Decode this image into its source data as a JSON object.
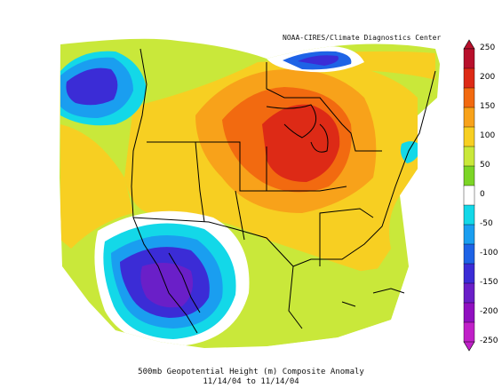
{
  "credit": "NOAA-CIRES/Climate Diagnostics Center",
  "title": "500mb Geopotential Height (m) Composite Anomaly",
  "date_range": "11/14/04  to 11/14/04",
  "colorbar": {
    "labels": [
      "250",
      "200",
      "150",
      "100",
      "50",
      "0",
      "-50",
      "-100",
      "-150",
      "-200",
      "-250"
    ],
    "colors": [
      "#b8102c",
      "#dd2a16",
      "#f26a10",
      "#f8a21a",
      "#f7cf22",
      "#c9e83a",
      "#7cd526",
      "#ffffff",
      "#13d8e8",
      "#1a9ef0",
      "#1e63e6",
      "#3b2cd6",
      "#6a1fc8",
      "#9010c0",
      "#c020c8"
    ]
  }
}
